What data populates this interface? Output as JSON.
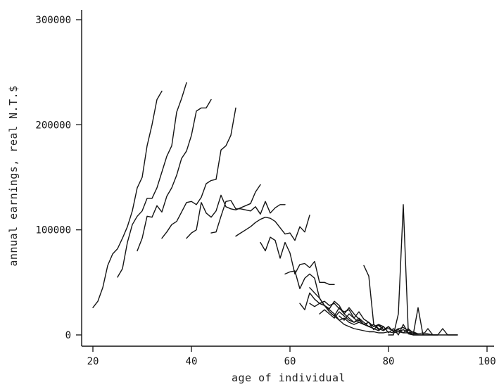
{
  "chart_data": {
    "type": "line",
    "title": "",
    "xlabel": "age of individual",
    "ylabel": "annual earnings, real N.T.$",
    "xlim": [
      20,
      100
    ],
    "ylim": [
      0,
      300000
    ],
    "xticks": [
      "20",
      "40",
      "60",
      "80",
      "100"
    ],
    "xtick_values": [
      20,
      40,
      60,
      80,
      100
    ],
    "yticks": [
      "0",
      "100000",
      "200000",
      "300000"
    ],
    "ytick_values": [
      0,
      100000,
      200000,
      300000
    ],
    "grid": false,
    "line_color": "#141414",
    "series": [
      {
        "x": [
          20,
          21,
          22,
          23,
          24,
          25,
          26,
          27,
          28,
          29,
          30,
          31,
          32,
          33,
          34
        ],
        "y": [
          26000,
          32000,
          45000,
          66000,
          77000,
          82000,
          92000,
          103000,
          118000,
          140000,
          150000,
          180000,
          200000,
          224000,
          232000
        ]
      },
      {
        "x": [
          25,
          26,
          27,
          28,
          29,
          30,
          31,
          32,
          33,
          34,
          35,
          36,
          37,
          38,
          39
        ],
        "y": [
          55000,
          63000,
          88000,
          105000,
          113000,
          118000,
          130000,
          130000,
          140000,
          155000,
          170000,
          180000,
          212000,
          225000,
          240000
        ]
      },
      {
        "x": [
          29,
          30,
          31,
          32,
          33,
          34,
          35,
          36,
          37,
          38,
          39,
          40,
          41,
          42,
          43,
          44
        ],
        "y": [
          80000,
          92000,
          113000,
          112000,
          123000,
          117000,
          132000,
          140000,
          152000,
          168000,
          175000,
          190000,
          213000,
          216000,
          216000,
          224000
        ]
      },
      {
        "x": [
          34,
          35,
          36,
          37,
          38,
          39,
          40,
          41,
          42,
          43,
          44,
          45,
          46,
          47,
          48,
          49
        ],
        "y": [
          92000,
          98000,
          105000,
          108000,
          117000,
          126000,
          127000,
          124000,
          131000,
          144000,
          147000,
          148000,
          176000,
          180000,
          190000,
          216000
        ]
      },
      {
        "x": [
          39,
          40,
          41,
          42,
          43,
          44,
          45,
          46,
          47,
          48,
          49,
          50,
          51,
          52,
          53,
          54
        ],
        "y": [
          92000,
          97000,
          100000,
          126000,
          116000,
          112000,
          118000,
          133000,
          122000,
          120000,
          119000,
          121000,
          123000,
          125000,
          136000,
          143000
        ]
      },
      {
        "x": [
          44,
          45,
          46,
          47,
          48,
          49,
          50,
          51,
          52,
          53,
          54,
          55,
          56,
          57,
          58,
          59
        ],
        "y": [
          97000,
          98000,
          113000,
          127000,
          128000,
          120000,
          120000,
          119000,
          118000,
          122000,
          115000,
          127000,
          116000,
          121000,
          124000,
          124000
        ]
      },
      {
        "x": [
          49,
          50,
          51,
          52,
          53,
          54,
          55,
          56,
          57,
          58,
          59,
          60,
          61,
          62,
          63,
          64
        ],
        "y": [
          94000,
          97000,
          100000,
          103000,
          107000,
          110000,
          112000,
          111000,
          108000,
          102000,
          96000,
          97000,
          90000,
          103000,
          98000,
          114000
        ]
      },
      {
        "x": [
          54,
          55,
          56,
          57,
          58,
          59,
          60,
          61,
          62,
          63,
          64,
          65,
          66,
          67,
          68,
          69
        ],
        "y": [
          88000,
          80000,
          93000,
          90000,
          73000,
          88000,
          78000,
          58000,
          67000,
          68000,
          64000,
          70000,
          50000,
          50000,
          48000,
          48000
        ]
      },
      {
        "x": [
          59,
          60,
          61,
          62,
          63,
          64,
          65,
          66,
          67,
          68,
          69,
          70,
          71,
          72,
          73,
          74
        ],
        "y": [
          58000,
          60000,
          61000,
          44000,
          54000,
          58000,
          54000,
          35000,
          28000,
          24000,
          20000,
          14000,
          16000,
          12000,
          10000,
          12000
        ]
      },
      {
        "x": [
          62,
          63,
          64,
          65,
          66,
          67,
          68,
          69,
          70,
          71,
          72,
          73,
          74,
          75,
          76,
          77,
          78,
          79
        ],
        "y": [
          30000,
          24000,
          40000,
          34000,
          30000,
          32000,
          28000,
          30000,
          25000,
          22000,
          24000,
          16000,
          22000,
          15000,
          12000,
          5000,
          10000,
          8000
        ]
      },
      {
        "x": [
          64,
          65,
          66,
          67,
          68,
          69,
          70,
          71,
          72,
          73,
          74,
          75,
          76,
          77,
          78,
          79,
          80,
          81,
          82,
          83,
          84
        ],
        "y": [
          30000,
          27000,
          30000,
          28000,
          25000,
          32000,
          28000,
          20000,
          26000,
          20000,
          15000,
          10000,
          12000,
          8000,
          10000,
          5000,
          8000,
          3000,
          6000,
          7000,
          4000
        ]
      },
      {
        "x": [
          64,
          65,
          66,
          67,
          68,
          69,
          70,
          71,
          72,
          73,
          74,
          75,
          76,
          77,
          78,
          79,
          80,
          81,
          82,
          83,
          84,
          85,
          86
        ],
        "y": [
          45000,
          40000,
          35000,
          28000,
          22000,
          18000,
          14000,
          10000,
          8000,
          6000,
          5000,
          4000,
          3000,
          3000,
          2000,
          2000,
          3000,
          2000,
          3000,
          2000,
          2000,
          1000,
          1000
        ]
      },
      {
        "x": [
          66,
          67,
          68,
          69,
          70,
          71,
          72,
          73,
          74,
          75,
          76,
          77,
          78,
          79,
          80,
          81,
          82,
          83,
          84,
          85,
          86
        ],
        "y": [
          20000,
          24000,
          20000,
          16000,
          22000,
          18000,
          14000,
          12000,
          16000,
          12000,
          8000,
          10000,
          6000,
          4000,
          8000,
          3000,
          5000,
          2000,
          6000,
          2000,
          1000
        ]
      },
      {
        "x": [
          68,
          69,
          70,
          71,
          72,
          73,
          74,
          75,
          76,
          77,
          78,
          79,
          80,
          81,
          82,
          83,
          84,
          85,
          86,
          87,
          88,
          89
        ],
        "y": [
          22000,
          18000,
          26000,
          20000,
          16000,
          12000,
          14000,
          10000,
          12000,
          8000,
          9000,
          5000,
          6000,
          4000,
          3000,
          5000,
          2000,
          3000,
          1000,
          2000,
          1000,
          0
        ]
      },
      {
        "x": [
          70,
          71,
          72,
          73,
          74,
          75,
          76,
          77,
          78,
          79,
          80,
          81,
          82,
          83,
          84,
          85,
          86,
          87,
          88,
          89,
          90
        ],
        "y": [
          18000,
          14000,
          20000,
          16000,
          12000,
          10000,
          8000,
          6000,
          4000,
          8000,
          2000,
          6000,
          0,
          10000,
          2000,
          0,
          26000,
          0,
          6000,
          0,
          0
        ]
      },
      {
        "x": [
          75,
          76,
          77,
          78,
          79
        ],
        "y": [
          66000,
          56000,
          10000,
          5000,
          8000
        ]
      },
      {
        "x": [
          80,
          81,
          82,
          83,
          84,
          85,
          86,
          87,
          88,
          89,
          90,
          91,
          92,
          93,
          94
        ],
        "y": [
          0,
          0,
          20000,
          124000,
          5000,
          0,
          0,
          0,
          0,
          0,
          0,
          6000,
          0,
          0,
          0
        ]
      },
      {
        "x": [
          84,
          85,
          86,
          87,
          88,
          89,
          90,
          91,
          92,
          93,
          94
        ],
        "y": [
          1000,
          0,
          0,
          0,
          0,
          0,
          0,
          0,
          0,
          0,
          0
        ]
      }
    ]
  }
}
